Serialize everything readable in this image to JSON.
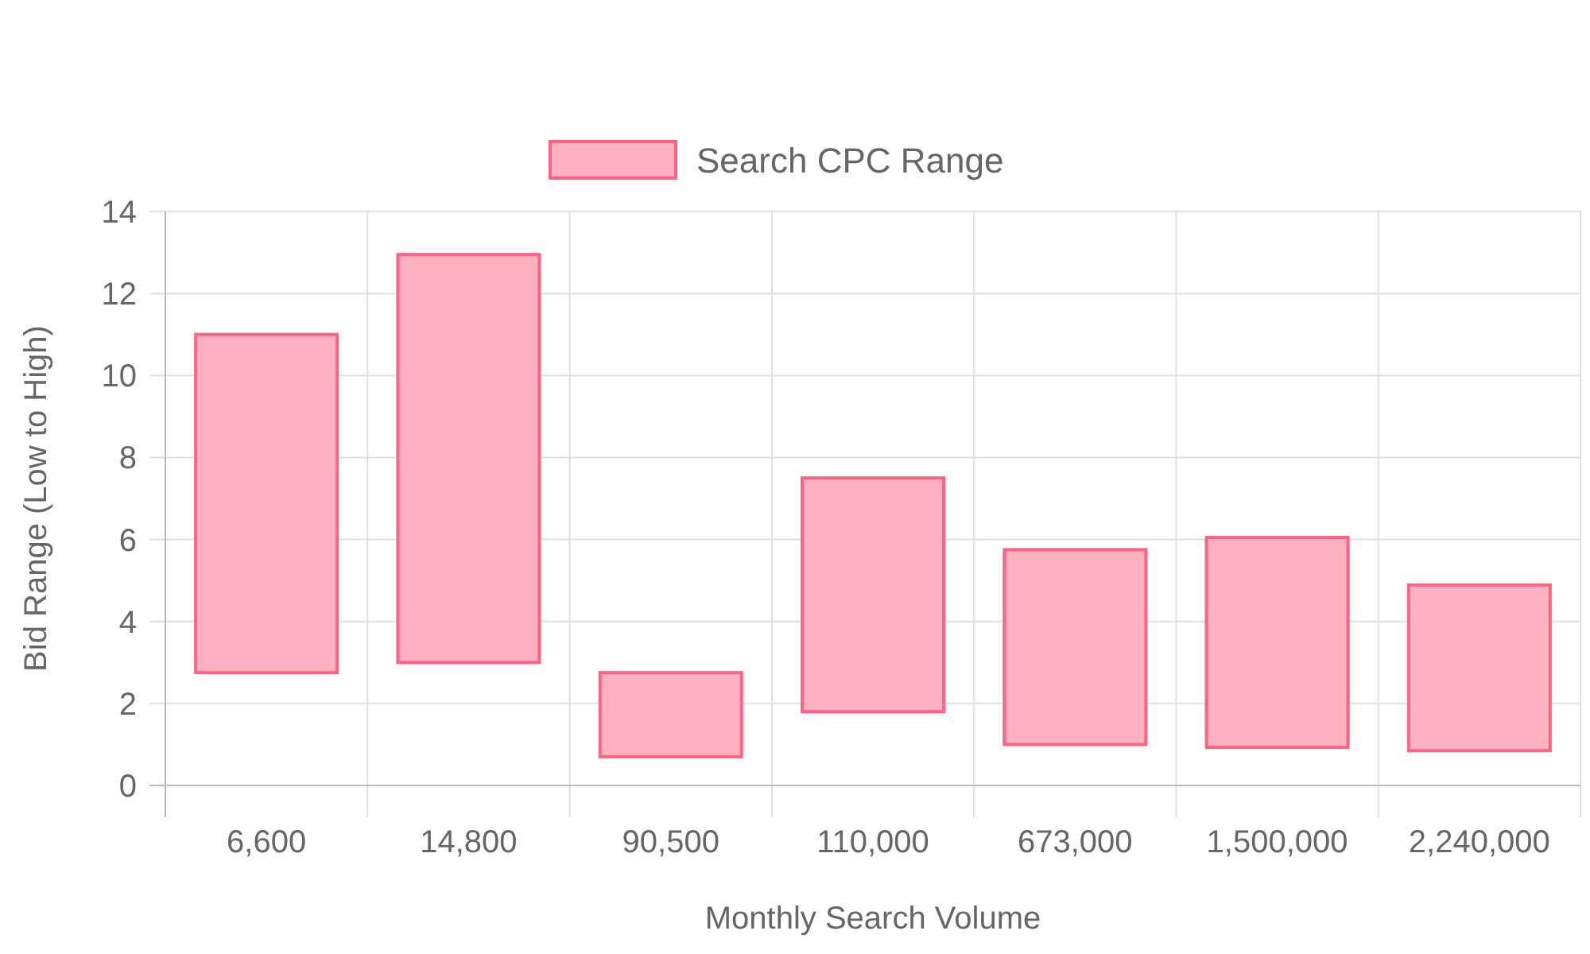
{
  "chart_data": {
    "type": "bar",
    "xlabel": "Monthly Search Volume",
    "ylabel": "Bid Range (Low to High)",
    "categories": [
      "6,600",
      "14,800",
      "90,500",
      "110,000",
      "673,000",
      "1,500,000",
      "2,240,000"
    ],
    "series": [
      {
        "name": "Search CPC Range",
        "color": "#ffb1c1",
        "base": [
          2.75,
          3,
          0.7,
          1.8,
          1.0,
          0.93,
          0.85
        ],
        "values": [
          8.25,
          9.95,
          2.05,
          5.7,
          4.75,
          5.12,
          4.04
        ]
      }
    ],
    "ylim": [
      0,
      14
    ],
    "yticks": [
      0,
      2,
      4,
      6,
      8,
      10,
      12,
      14
    ],
    "grid": true,
    "legend": "top"
  }
}
